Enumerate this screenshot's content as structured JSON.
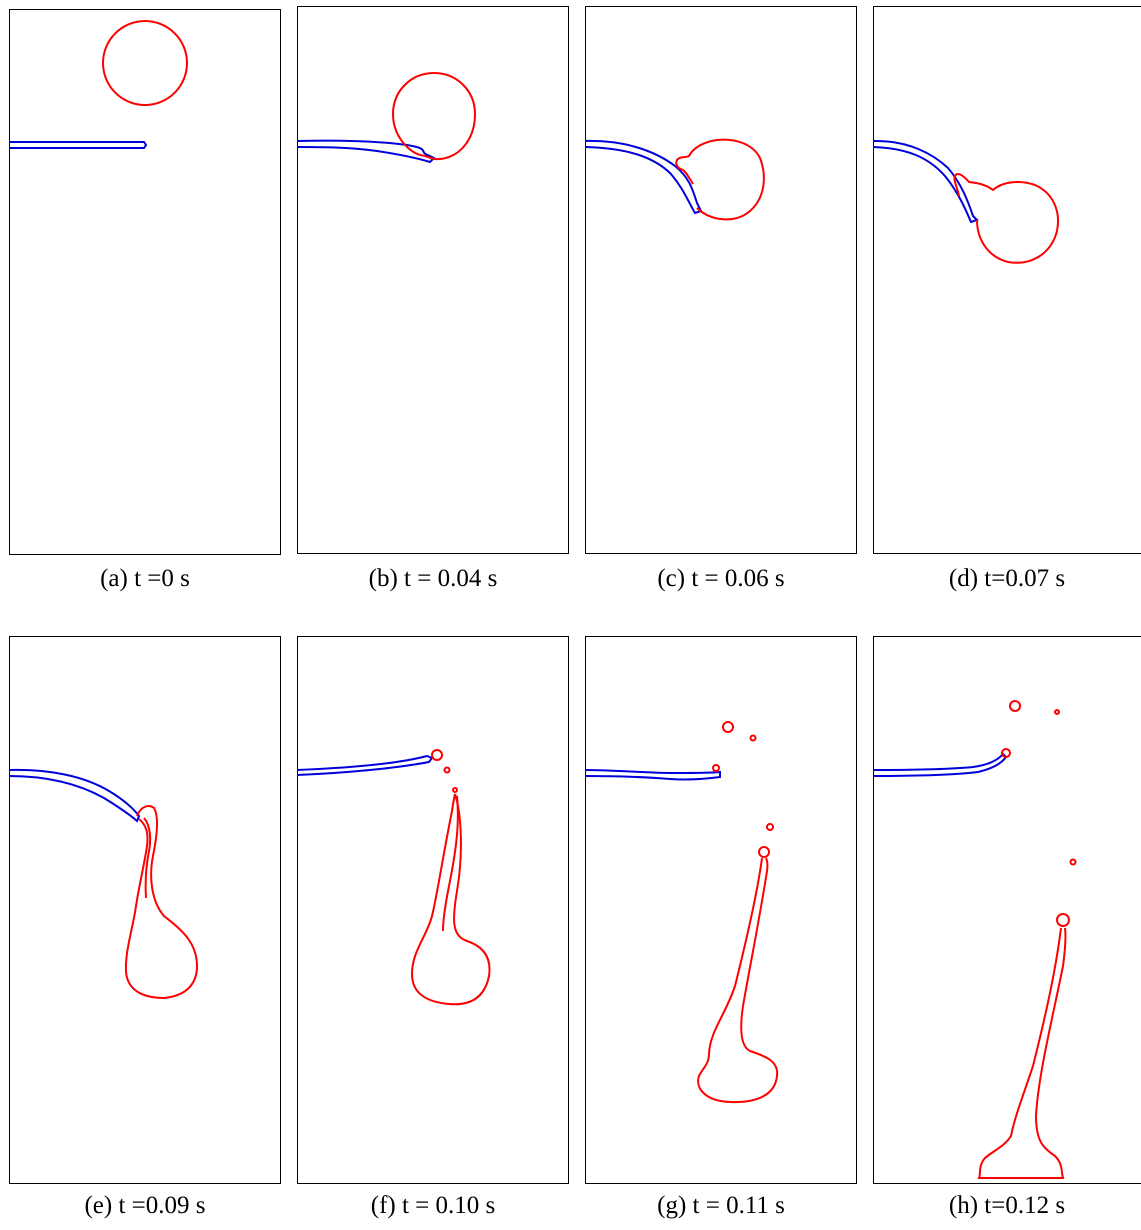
{
  "colors": {
    "drop": "#ff0000",
    "plate": "#0000dd",
    "frame": "#000000",
    "background": "#ffffff"
  },
  "panels": [
    {
      "caption": "(a) t =0 s"
    },
    {
      "caption": "(b) t = 0.04 s"
    },
    {
      "caption": "(c) t = 0.06 s"
    },
    {
      "caption": "(d) t=0.07 s"
    },
    {
      "caption": "(e) t =0.09 s"
    },
    {
      "caption": "(f) t = 0.10 s"
    },
    {
      "caption": "(g) t = 0.11 s"
    },
    {
      "caption": "(h) t=0.12 s"
    }
  ]
}
